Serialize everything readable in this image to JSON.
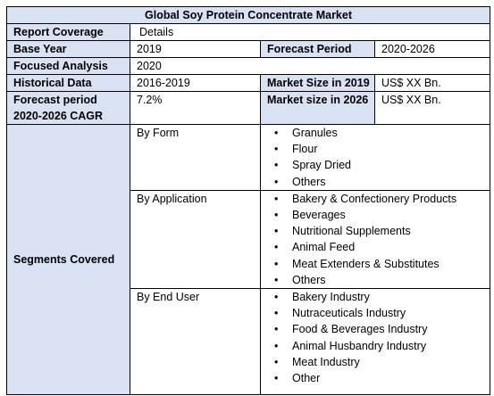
{
  "title": "Global Soy Protein Concentrate Market",
  "rows": {
    "coverage": {
      "label": "Report Coverage",
      "value": "Details"
    },
    "base_year": {
      "label": "Base Year",
      "value": "2019",
      "label2": "Forecast Period",
      "value2": "2020-2026"
    },
    "focused": {
      "label": "Focused Analysis",
      "value": "2020"
    },
    "historical": {
      "label": "Historical Data",
      "value": "2016-2019",
      "label2": "Market Size in 2019",
      "value2": "US$ XX Bn."
    },
    "cagr": {
      "label_line1": "Forecast period",
      "label_line2": "2020-2026 CAGR",
      "value": "7.2%",
      "label2": "Market size in 2026",
      "value2": "US$ XX Bn."
    }
  },
  "segments": {
    "label": "Segments Covered",
    "by_form": {
      "label": "By Form",
      "items": [
        "Granules",
        "Flour",
        "Spray Dried",
        "Others"
      ]
    },
    "by_application": {
      "label": "By Application",
      "items": [
        "Bakery & Confectionery Products",
        "Beverages",
        "Nutritional Supplements",
        "Animal Feed",
        "Meat Extenders & Substitutes",
        "Others"
      ]
    },
    "by_end_user": {
      "label": "By End User",
      "items": [
        "Bakery Industry",
        "Nutraceuticals Industry",
        "Food & Beverages Industry",
        "Animal Husbandry Industry",
        "Meat Industry",
        "Other"
      ]
    }
  }
}
